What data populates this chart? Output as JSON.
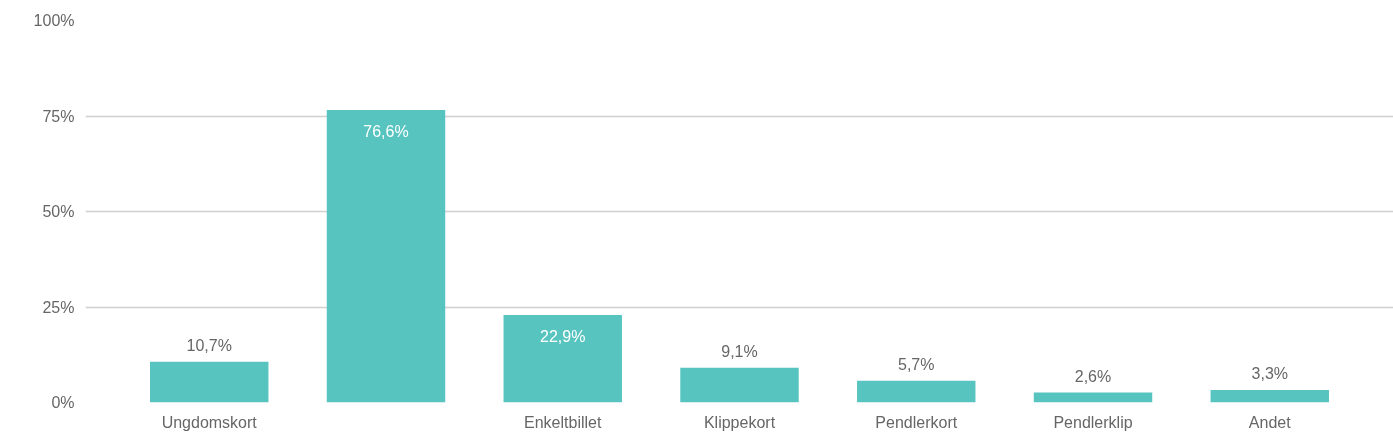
{
  "chart_data": {
    "type": "bar",
    "categories": [
      "Ungdomskort",
      null,
      "Enkeltbillet",
      "Klippekort",
      "Pendlerkort",
      "Pendlerklip",
      "Andet"
    ],
    "values": [
      10.7,
      76.6,
      22.9,
      9.1,
      5.7,
      2.6,
      3.3
    ],
    "value_labels": [
      "10,7%",
      "76,6%",
      "22,9%",
      "9,1%",
      "5,7%",
      "2,6%",
      "3,3%"
    ],
    "color": "#57c4c0",
    "ylim": [
      0,
      100
    ],
    "yticks": [
      {
        "value": 0,
        "label": "0%"
      },
      {
        "value": 25,
        "label": "25%"
      },
      {
        "value": 50,
        "label": "50%"
      },
      {
        "value": 75,
        "label": "75%"
      },
      {
        "value": 100,
        "label": "100%"
      }
    ],
    "grid": "y"
  }
}
